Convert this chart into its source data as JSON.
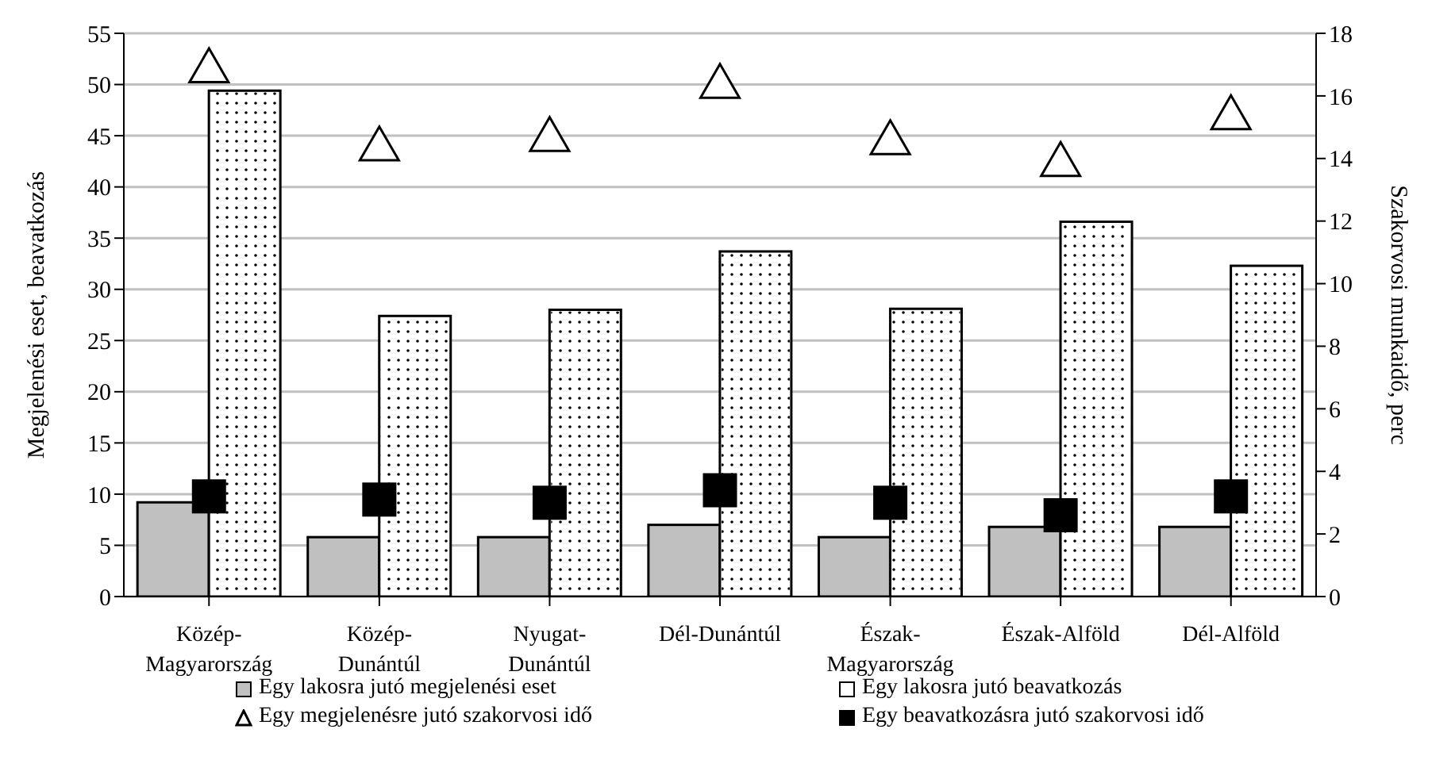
{
  "chart_data": {
    "type": "bar",
    "ylabel": "Megjelenési eset, beavatkozás",
    "y2label": "Szakorvosi munkaidő, perc",
    "categories": [
      "Közép-Magyarország",
      "Közép-Dunántúl",
      "Nyugat-Dunántúl",
      "Dél-Dunántúl",
      "Észak-Magyarország",
      "Észak-Alföld",
      "Dél-Alföld"
    ],
    "series": [
      {
        "name": "Egy lakosra jutó megjelenési eset",
        "color": "#c0c0c0",
        "values": [
          9.2,
          5.8,
          5.8,
          7.0,
          5.8,
          6.8,
          6.8
        ]
      },
      {
        "name": "Egy lakosra jutó beavatkozás",
        "color": "#ffffff",
        "values": [
          49.4,
          27.4,
          28.0,
          33.7,
          28.1,
          36.6,
          32.3
        ]
      },
      {
        "name": "Egy megjelenésre jutó szakorvosi idő",
        "type": "scatter",
        "axis": "y2",
        "marker": "triangle",
        "color": "#ffffff",
        "values": [
          16.8,
          14.3,
          14.6,
          16.3,
          14.5,
          13.8,
          15.3
        ]
      },
      {
        "name": "Egy beavatkozásra jutó szakorvosi idő",
        "type": "scatter",
        "axis": "y2",
        "marker": "square",
        "color": "#000000",
        "values": [
          3.2,
          3.1,
          3.0,
          3.4,
          3.0,
          2.6,
          3.2
        ]
      }
    ],
    "ylim": [
      0,
      55
    ],
    "yticks": [
      0,
      5,
      10,
      15,
      20,
      25,
      30,
      35,
      40,
      45,
      50,
      55
    ],
    "y2lim": [
      0,
      18
    ],
    "y2ticks": [
      0,
      2,
      4,
      6,
      8,
      10,
      12,
      14,
      16,
      18
    ],
    "grid": "y",
    "legend": "bottom"
  }
}
